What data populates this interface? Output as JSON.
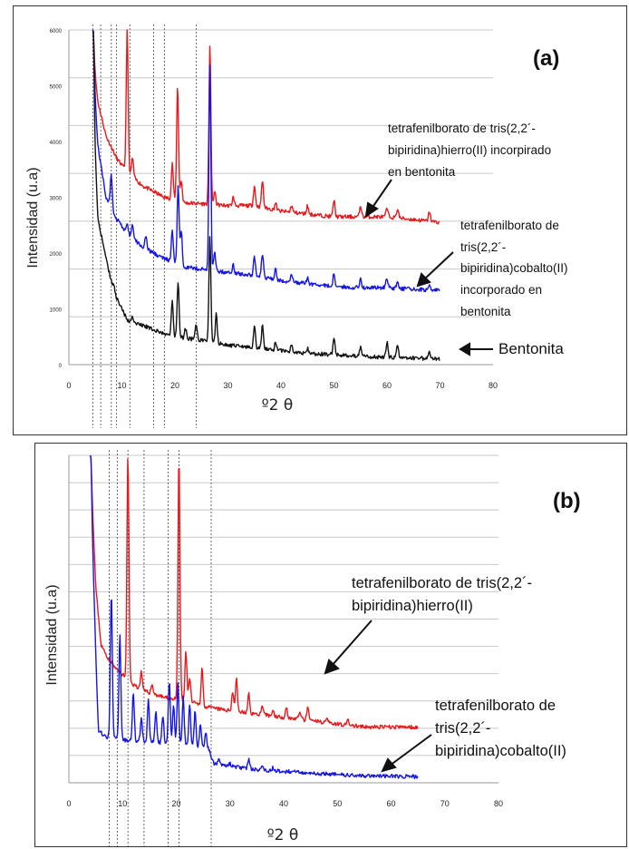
{
  "chart_data": [
    {
      "type": "line",
      "panel_label": "(a)",
      "xlabel": "º2 θ",
      "ylabel": "Intensidad (u.a)",
      "xlim": [
        0,
        80
      ],
      "ylim": [
        0,
        6000
      ],
      "xticks": [
        "0",
        "10",
        "20",
        "30",
        "40",
        "50",
        "60",
        "70",
        "80"
      ],
      "yticks": [
        "0",
        "1000",
        "2000",
        "3000",
        "4000",
        "5000",
        "6000"
      ],
      "grid": "horizontal",
      "reference_lines_x": [
        4.5,
        6,
        8,
        9,
        11.5,
        16,
        18,
        24
      ],
      "series": [
        {
          "color": "#e8191c",
          "annotation": "tetrafenilborato de tris(2,2´-bipiridina)hierro(II)  incorpirado en bentonita",
          "baseline": [
            [
              4.5,
              5600
            ],
            [
              5.5,
              4700
            ],
            [
              7,
              4100
            ],
            [
              9,
              3700
            ],
            [
              11,
              3450
            ],
            [
              14,
              3200
            ],
            [
              18,
              3000
            ],
            [
              22,
              2900
            ],
            [
              26,
              2880
            ],
            [
              30,
              2850
            ],
            [
              35,
              2850
            ],
            [
              40,
              2750
            ],
            [
              45,
              2700
            ],
            [
              50,
              2650
            ],
            [
              55,
              2650
            ],
            [
              60,
              2650
            ],
            [
              65,
              2600
            ],
            [
              70,
              2550
            ]
          ],
          "peaks": [
            [
              4.6,
              6000
            ],
            [
              11,
              6000
            ],
            [
              12,
              3700
            ],
            [
              19.5,
              3600
            ],
            [
              20.5,
              5000
            ],
            [
              21.2,
              3300
            ],
            [
              26.6,
              5750
            ],
            [
              27.5,
              3100
            ],
            [
              31,
              3000
            ],
            [
              35,
              3200
            ],
            [
              36.5,
              3300
            ],
            [
              39,
              2900
            ],
            [
              42,
              2850
            ],
            [
              45,
              2850
            ],
            [
              50,
              2950
            ],
            [
              55,
              2850
            ],
            [
              60,
              2800
            ],
            [
              62,
              2800
            ],
            [
              68,
              2750
            ]
          ]
        },
        {
          "color": "#1515e8",
          "annotation": "tetrafenilborato de tris(2,2´-bipiridina)cobalto(II) incorporado en bentonita",
          "baseline": [
            [
              4.5,
              5500
            ],
            [
              5.5,
              3900
            ],
            [
              7,
              3000
            ],
            [
              9,
              2600
            ],
            [
              11,
              2350
            ],
            [
              14,
              2100
            ],
            [
              18,
              1900
            ],
            [
              22,
              1750
            ],
            [
              26,
              1700
            ],
            [
              30,
              1650
            ],
            [
              35,
              1600
            ],
            [
              40,
              1500
            ],
            [
              45,
              1450
            ],
            [
              50,
              1400
            ],
            [
              55,
              1380
            ],
            [
              60,
              1380
            ],
            [
              65,
              1350
            ],
            [
              70,
              1330
            ]
          ],
          "peaks": [
            [
              4.6,
              6000
            ],
            [
              8,
              3400
            ],
            [
              9.5,
              2600
            ],
            [
              11,
              2500
            ],
            [
              12,
              2500
            ],
            [
              14.5,
              2300
            ],
            [
              19.5,
              2400
            ],
            [
              20.6,
              3200
            ],
            [
              21.2,
              2400
            ],
            [
              26.6,
              5400
            ],
            [
              27.5,
              2000
            ],
            [
              31,
              1800
            ],
            [
              35,
              1950
            ],
            [
              36.5,
              2000
            ],
            [
              39,
              1700
            ],
            [
              42,
              1600
            ],
            [
              45,
              1550
            ],
            [
              50,
              1650
            ],
            [
              55,
              1550
            ],
            [
              60,
              1550
            ],
            [
              62,
              1500
            ],
            [
              68,
              1450
            ]
          ]
        },
        {
          "color": "#111111",
          "annotation": "Bentonita",
          "baseline": [
            [
              4.5,
              4800
            ],
            [
              5.5,
              2600
            ],
            [
              7,
              1900
            ],
            [
              8.5,
              1300
            ],
            [
              11,
              800
            ],
            [
              14,
              700
            ],
            [
              18,
              550
            ],
            [
              20,
              500
            ],
            [
              24,
              450
            ],
            [
              26,
              420
            ],
            [
              30,
              350
            ],
            [
              35,
              300
            ],
            [
              40,
              250
            ],
            [
              45,
              200
            ],
            [
              50,
              180
            ],
            [
              55,
              150
            ],
            [
              60,
              130
            ],
            [
              65,
              120
            ],
            [
              70,
              100
            ]
          ],
          "peaks": [
            [
              4.6,
              6000
            ],
            [
              6,
              2200
            ],
            [
              8.5,
              1400
            ],
            [
              12,
              850
            ],
            [
              19.5,
              1150
            ],
            [
              20.6,
              1500
            ],
            [
              22,
              650
            ],
            [
              24,
              700
            ],
            [
              26.6,
              2300
            ],
            [
              27.8,
              900
            ],
            [
              35,
              700
            ],
            [
              36.5,
              700
            ],
            [
              39,
              400
            ],
            [
              42,
              350
            ],
            [
              45,
              300
            ],
            [
              50,
              500
            ],
            [
              55,
              300
            ],
            [
              60,
              400
            ],
            [
              62,
              350
            ],
            [
              68,
              250
            ]
          ]
        }
      ]
    },
    {
      "type": "line",
      "panel_label": "(b)",
      "xlabel": "º2 θ",
      "ylabel": "Intensidad (u.a)",
      "xlim": [
        0,
        80
      ],
      "ylim": [
        0,
        100
      ],
      "xticks": [
        "0",
        "10",
        "20",
        "30",
        "40",
        "50",
        "60",
        "70",
        "80"
      ],
      "grid": "horizontal",
      "reference_lines_x": [
        7.5,
        9,
        11,
        14,
        18.5,
        20.5,
        26.5
      ],
      "series": [
        {
          "color": "#e8191c",
          "annotation": "tetrafenilborato de tris(2,2´-bipiridina)hierro(II)",
          "baseline": [
            [
              4,
              100
            ],
            [
              5,
              60
            ],
            [
              6,
              42
            ],
            [
              8,
              36
            ],
            [
              10,
              33
            ],
            [
              12,
              30
            ],
            [
              14,
              28
            ],
            [
              18,
              26
            ],
            [
              22,
              25
            ],
            [
              26,
              23
            ],
            [
              30,
              22
            ],
            [
              35,
              21
            ],
            [
              40,
              20
            ],
            [
              45,
              19
            ],
            [
              50,
              18
            ],
            [
              55,
              17
            ],
            [
              60,
              17
            ],
            [
              65,
              17
            ]
          ],
          "peaks": [
            [
              4.1,
              100
            ],
            [
              8,
              37
            ],
            [
              11,
              100
            ],
            [
              13.5,
              34
            ],
            [
              15.5,
              30
            ],
            [
              20.5,
              100
            ],
            [
              21.8,
              40
            ],
            [
              22.5,
              32
            ],
            [
              24.8,
              35
            ],
            [
              30.5,
              28
            ],
            [
              31.2,
              32
            ],
            [
              33.5,
              27
            ],
            [
              36,
              23
            ],
            [
              38,
              22
            ],
            [
              40.5,
              23
            ],
            [
              43,
              22
            ],
            [
              44.5,
              23
            ],
            [
              48,
              20
            ],
            [
              52,
              19
            ]
          ]
        },
        {
          "color": "#1515e8",
          "annotation": "tetrafenilborato de tris(2,2´-bipiridina)cobalto(II)",
          "baseline": [
            [
              4,
              95
            ],
            [
              5,
              40
            ],
            [
              5.5,
              16
            ],
            [
              7,
              14
            ],
            [
              10,
              13
            ],
            [
              14,
              12.5
            ],
            [
              18,
              12
            ],
            [
              22,
              11.5
            ],
            [
              26,
              10.5
            ],
            [
              27,
              6
            ],
            [
              30,
              5
            ],
            [
              35,
              4
            ],
            [
              40,
              3.5
            ],
            [
              45,
              3
            ],
            [
              50,
              2.5
            ],
            [
              55,
              2.2
            ],
            [
              60,
              2
            ],
            [
              65,
              1.8
            ]
          ],
          "peaks": [
            [
              4.1,
              100
            ],
            [
              7.9,
              58
            ],
            [
              9.5,
              45
            ],
            [
              12,
              27
            ],
            [
              13.5,
              20
            ],
            [
              14.8,
              25
            ],
            [
              16.2,
              22
            ],
            [
              17.5,
              20
            ],
            [
              18.7,
              31
            ],
            [
              19.5,
              24
            ],
            [
              20.3,
              30
            ],
            [
              21.3,
              26
            ],
            [
              22.5,
              24
            ],
            [
              23.5,
              22
            ],
            [
              24.5,
              18
            ],
            [
              25.5,
              15
            ],
            [
              28,
              7
            ],
            [
              30,
              6
            ],
            [
              33.5,
              7
            ],
            [
              36,
              5
            ],
            [
              38,
              4.5
            ],
            [
              42,
              4
            ]
          ]
        }
      ]
    }
  ]
}
